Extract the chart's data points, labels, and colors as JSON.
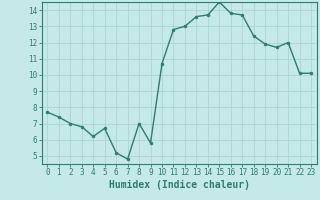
{
  "x": [
    0,
    1,
    2,
    3,
    4,
    5,
    6,
    7,
    8,
    9,
    10,
    11,
    12,
    13,
    14,
    15,
    16,
    17,
    18,
    19,
    20,
    21,
    22,
    23
  ],
  "y": [
    7.7,
    7.4,
    7.0,
    6.8,
    6.2,
    6.7,
    5.2,
    4.8,
    7.0,
    5.8,
    10.7,
    12.8,
    13.0,
    13.6,
    13.7,
    14.5,
    13.8,
    13.7,
    12.4,
    11.9,
    11.7,
    12.0,
    10.1,
    10.1
  ],
  "line_color": "#2e7d6e",
  "marker": "o",
  "marker_size": 2.0,
  "line_width": 1.0,
  "bg_color": "#c5e8e8",
  "grid_color": "#aad4d4",
  "xlabel": "Humidex (Indice chaleur)",
  "xlim": [
    -0.5,
    23.5
  ],
  "ylim": [
    4.5,
    14.5
  ],
  "yticks": [
    5,
    6,
    7,
    8,
    9,
    10,
    11,
    12,
    13,
    14
  ],
  "xticks": [
    0,
    1,
    2,
    3,
    4,
    5,
    6,
    7,
    8,
    9,
    10,
    11,
    12,
    13,
    14,
    15,
    16,
    17,
    18,
    19,
    20,
    21,
    22,
    23
  ],
  "tick_label_fontsize": 5.5,
  "xlabel_fontsize": 7.0
}
